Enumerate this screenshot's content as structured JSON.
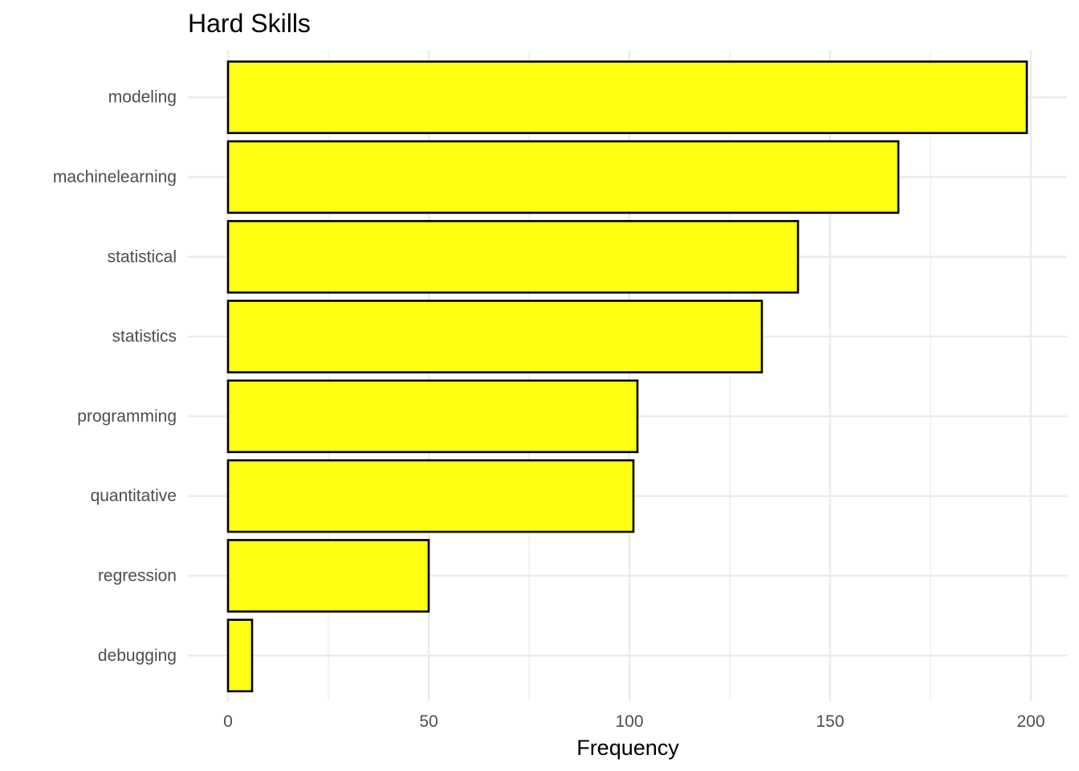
{
  "chart_data": {
    "type": "bar",
    "orientation": "horizontal",
    "title": "Hard Skills",
    "xlabel": "Frequency",
    "ylabel": "",
    "categories": [
      "modeling",
      "machinelearning",
      "statistical",
      "statistics",
      "programming",
      "quantitative",
      "regression",
      "debugging"
    ],
    "values": [
      199,
      167,
      142,
      133,
      102,
      101,
      50,
      6
    ],
    "xlim": [
      0,
      200
    ],
    "x_ticks": [
      0,
      50,
      100,
      150,
      200
    ],
    "grid": true,
    "legend": "none",
    "colors": {
      "bar_fill": "#ffff14",
      "bar_outline": "#000000"
    }
  }
}
